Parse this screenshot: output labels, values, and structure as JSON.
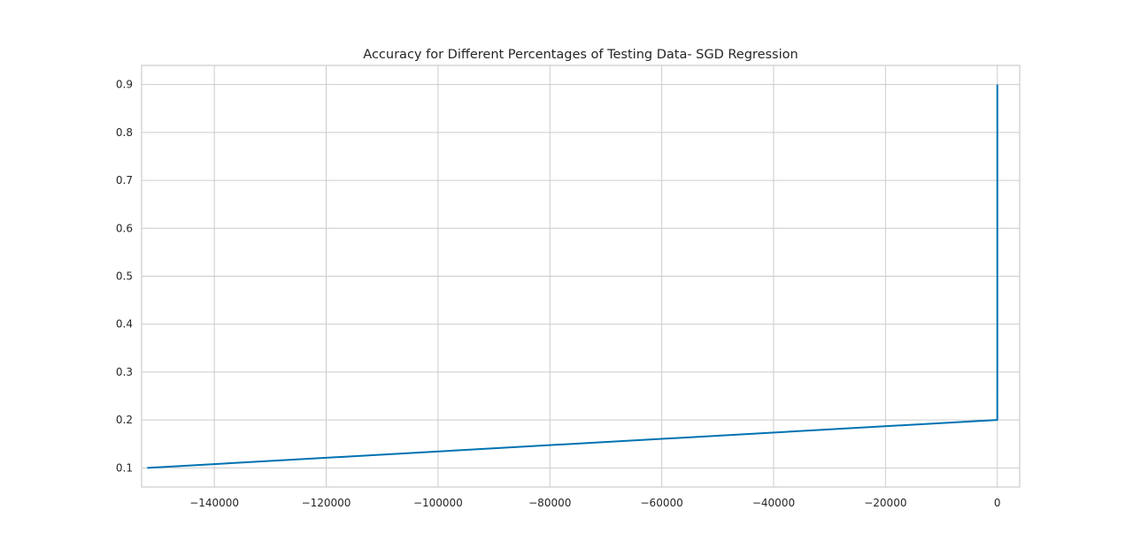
{
  "chart_data": {
    "type": "line",
    "title": "Accuracy for Different Percentages of Testing Data- SGD Regression",
    "xlabel": "",
    "ylabel": "",
    "xlim": [
      -153000,
      4000
    ],
    "ylim": [
      0.06,
      0.94
    ],
    "grid": true,
    "line_color": "#0072b2",
    "x_ticks": [
      -140000,
      -120000,
      -100000,
      -80000,
      -60000,
      -40000,
      -20000,
      0
    ],
    "x_tick_labels": [
      "−140000",
      "−120000",
      "−100000",
      "−80000",
      "−60000",
      "−40000",
      "−20000",
      "0"
    ],
    "y_ticks": [
      0.1,
      0.2,
      0.3,
      0.4,
      0.5,
      0.6,
      0.7,
      0.8,
      0.9
    ],
    "y_tick_labels": [
      "0.1",
      "0.2",
      "0.3",
      "0.4",
      "0.5",
      "0.6",
      "0.7",
      "0.8",
      "0.9"
    ],
    "series": [
      {
        "x": [
          -152000,
          -8,
          -2,
          -0.5,
          -0.2,
          -0.1,
          0,
          0,
          0
        ],
        "y": [
          0.1,
          0.2,
          0.3,
          0.4,
          0.5,
          0.6,
          0.7,
          0.8,
          0.9
        ]
      }
    ]
  }
}
